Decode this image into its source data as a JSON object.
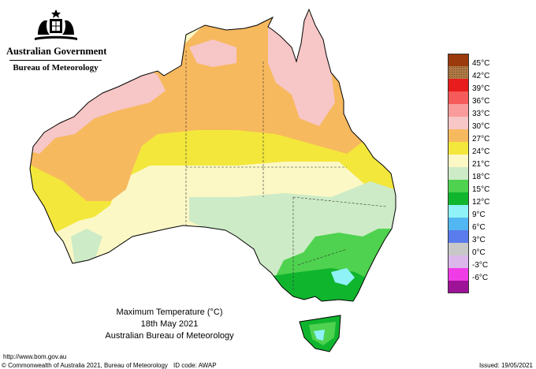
{
  "header": {
    "government": "Australian Government",
    "bureau": "Bureau of Meteorology"
  },
  "legend": {
    "items": [
      {
        "label": "45°C",
        "color": "#9b3a0c"
      },
      {
        "label": "42°C",
        "color": "#b07a46"
      },
      {
        "label": "39°C",
        "color": "#e81c1c"
      },
      {
        "label": "36°C",
        "color": "#f75a5a"
      },
      {
        "label": "33°C",
        "color": "#fa9b9b"
      },
      {
        "label": "30°C",
        "color": "#f7c6c6"
      },
      {
        "label": "27°C",
        "color": "#f7b95e"
      },
      {
        "label": "24°C",
        "color": "#f3e73b"
      },
      {
        "label": "21°C",
        "color": "#fbf8c5"
      },
      {
        "label": "18°C",
        "color": "#cdebc6"
      },
      {
        "label": "15°C",
        "color": "#4fd24f"
      },
      {
        "label": "12°C",
        "color": "#10b52e"
      },
      {
        "label": "9°C",
        "color": "#8ef2f7"
      },
      {
        "label": "6°C",
        "color": "#52b6f2"
      },
      {
        "label": "3°C",
        "color": "#5a7cec"
      },
      {
        "label": "0°C",
        "color": "#c8c8c8"
      },
      {
        "label": "-3°C",
        "color": "#dbb6ea"
      },
      {
        "label": "-6°C",
        "color": "#f03ce6"
      },
      {
        "label": "",
        "color": "#9d1296"
      }
    ]
  },
  "caption": {
    "title": "Maximum Temperature (°C)",
    "date": "18th May 2021",
    "source": "Australian Bureau of Meteorology"
  },
  "footer": {
    "url": "http://www.bom.gov.au",
    "copyright": "© Commonwealth of Australia 2021, Bureau of Meteorology",
    "id_code": "ID code: AWAP",
    "issued": "Issued: 19/05/2021"
  }
}
